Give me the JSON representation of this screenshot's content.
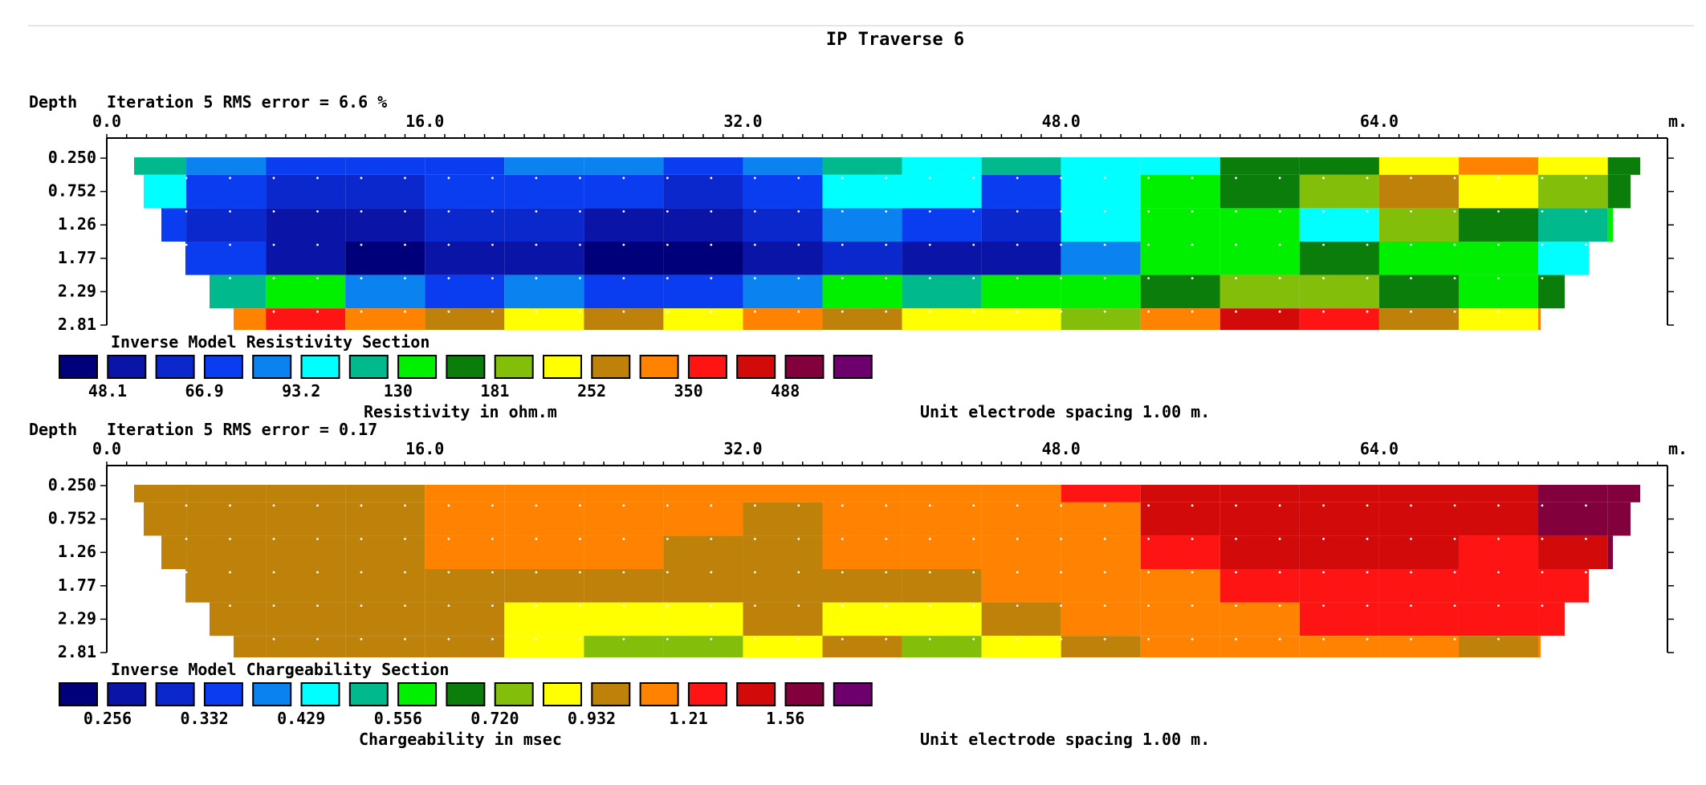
{
  "title": "IP Traverse 6",
  "unit_spacing": "Unit electrode spacing 1.00 m.",
  "x_axis": {
    "unit": "m.",
    "ticks": [
      "0.0",
      "16.0",
      "32.0",
      "48.0",
      "64.0"
    ],
    "tick_values": [
      0,
      16,
      32,
      48,
      64
    ],
    "range": [
      0,
      78.5
    ]
  },
  "depth_label": "Depth",
  "depth_ticks": [
    "0.250",
    "0.752",
    "1.26",
    "1.77",
    "2.29",
    "2.81"
  ],
  "palette": [
    "#00007a",
    "#0a14a6",
    "#0a28cc",
    "#0a3cf0",
    "#0a82f0",
    "#00ffff",
    "#00b98c",
    "#00f000",
    "#0a7d0a",
    "#82be0a",
    "#ffff00",
    "#be820a",
    "#ff8200",
    "#ff1414",
    "#d20a0a",
    "#82003c",
    "#6e006e"
  ],
  "sections": [
    {
      "id": "resistivity",
      "iteration_text": "Iteration 5 RMS error = 6.6 %",
      "section_title": "Inverse Model Resistivity Section",
      "scale_values": [
        "48.1",
        "66.9",
        "93.2",
        "130",
        "181",
        "252",
        "350",
        "488"
      ],
      "unit_label": "Resistivity in ohm.m"
    },
    {
      "id": "chargeability",
      "iteration_text": "Iteration 5 RMS error = 0.17",
      "section_title": "Inverse Model Chargeability Section",
      "scale_values": [
        "0.256",
        "0.332",
        "0.429",
        "0.556",
        "0.720",
        "0.932",
        "1.21",
        "1.56"
      ],
      "unit_label": "Chargeability in msec"
    }
  ],
  "chart_data": [
    {
      "type": "heatmap",
      "title": "Inverse Model Resistivity Section",
      "xlabel": "m.",
      "ylabel": "Depth",
      "x_range": [
        0,
        78.5
      ],
      "depth_levels": [
        0.25,
        0.752,
        1.26,
        1.77,
        2.29,
        2.81
      ],
      "color_scale_values": [
        48.1,
        66.9,
        93.2,
        130,
        181,
        252,
        350,
        488
      ],
      "colorbar_label": "Resistivity in ohm.m",
      "x": [
        2,
        6,
        10,
        14,
        18,
        22,
        26,
        30,
        34,
        38,
        42,
        46,
        50,
        54,
        58,
        62,
        66,
        70,
        74,
        77
      ],
      "grid_color_index": [
        [
          6,
          4,
          3,
          3,
          3,
          4,
          4,
          3,
          4,
          6,
          5,
          6,
          5,
          5,
          8,
          8,
          10,
          12,
          10,
          8
        ],
        [
          5,
          3,
          2,
          2,
          3,
          3,
          3,
          2,
          3,
          5,
          5,
          3,
          5,
          7,
          8,
          9,
          11,
          10,
          9,
          8
        ],
        [
          3,
          2,
          1,
          1,
          2,
          2,
          1,
          1,
          2,
          4,
          3,
          2,
          5,
          7,
          7,
          5,
          9,
          8,
          6,
          7
        ],
        [
          2,
          3,
          1,
          0,
          1,
          1,
          0,
          0,
          1,
          2,
          1,
          1,
          4,
          7,
          7,
          8,
          7,
          7,
          5,
          7
        ],
        [
          5,
          6,
          7,
          4,
          3,
          4,
          3,
          3,
          4,
          7,
          6,
          7,
          7,
          8,
          9,
          9,
          8,
          7,
          8,
          11
        ],
        [
          11,
          12,
          13,
          12,
          11,
          10,
          11,
          10,
          12,
          11,
          10,
          10,
          9,
          12,
          14,
          13,
          11,
          10,
          12,
          15
        ]
      ]
    },
    {
      "type": "heatmap",
      "title": "Inverse Model Chargeability Section",
      "xlabel": "m.",
      "ylabel": "Depth",
      "x_range": [
        0,
        78.5
      ],
      "depth_levels": [
        0.25,
        0.752,
        1.26,
        1.77,
        2.29,
        2.81
      ],
      "color_scale_values": [
        0.256,
        0.332,
        0.429,
        0.556,
        0.72,
        0.932,
        1.21,
        1.56
      ],
      "colorbar_label": "Chargeability in msec",
      "x": [
        2,
        6,
        10,
        14,
        18,
        22,
        26,
        30,
        34,
        38,
        42,
        46,
        50,
        54,
        58,
        62,
        66,
        70,
        74,
        77
      ],
      "grid_color_index": [
        [
          11,
          11,
          11,
          11,
          12,
          12,
          12,
          12,
          12,
          12,
          12,
          12,
          13,
          14,
          14,
          14,
          14,
          14,
          15,
          15
        ],
        [
          11,
          11,
          11,
          11,
          12,
          12,
          12,
          12,
          11,
          12,
          12,
          12,
          12,
          14,
          14,
          14,
          14,
          14,
          15,
          15
        ],
        [
          11,
          11,
          11,
          11,
          12,
          12,
          12,
          11,
          11,
          12,
          12,
          12,
          12,
          13,
          14,
          14,
          14,
          13,
          14,
          15
        ],
        [
          11,
          11,
          11,
          11,
          11,
          11,
          11,
          11,
          11,
          11,
          11,
          12,
          12,
          12,
          13,
          13,
          13,
          13,
          13,
          13
        ],
        [
          11,
          11,
          11,
          11,
          11,
          10,
          10,
          10,
          11,
          10,
          10,
          11,
          12,
          12,
          12,
          13,
          13,
          13,
          13,
          13
        ],
        [
          11,
          11,
          11,
          11,
          11,
          10,
          9,
          9,
          10,
          11,
          9,
          10,
          11,
          12,
          12,
          12,
          12,
          11,
          12,
          12
        ]
      ]
    }
  ]
}
